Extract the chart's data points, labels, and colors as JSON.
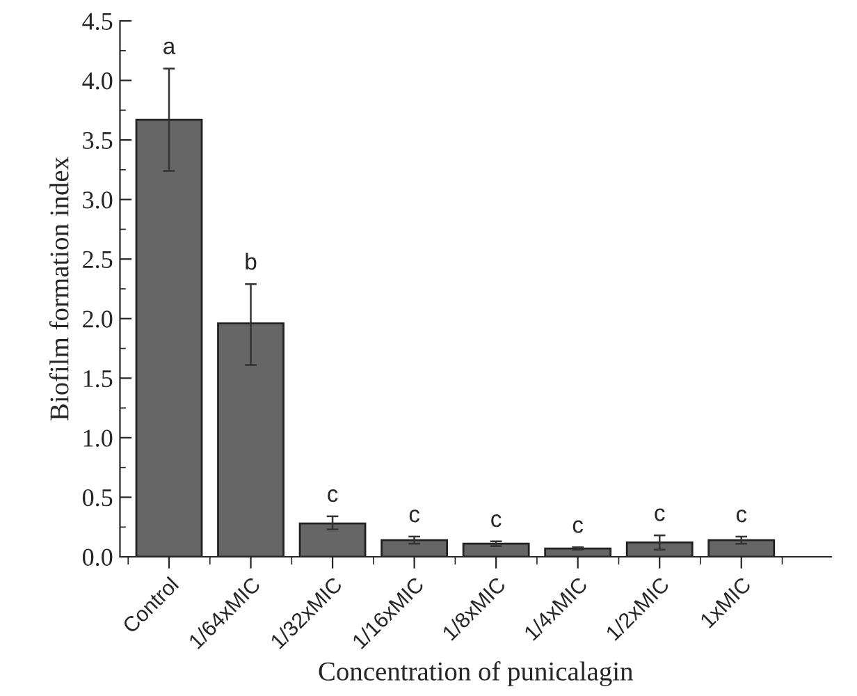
{
  "chart_data": {
    "type": "bar",
    "xlabel": "Concentration of punicalagin",
    "ylabel": "Biofilm formation index",
    "categories": [
      "Control",
      "1/64xMIC",
      "1/32xMIC",
      "1/16xMIC",
      "1/8xMIC",
      "1/4xMIC",
      "1/2xMIC",
      "1xMIC"
    ],
    "values": [
      3.67,
      1.96,
      0.28,
      0.14,
      0.11,
      0.07,
      0.12,
      0.14
    ],
    "errors": [
      [
        3.24,
        4.1
      ],
      [
        1.61,
        2.29
      ],
      [
        0.23,
        0.34
      ],
      [
        0.11,
        0.17
      ],
      [
        0.09,
        0.13
      ],
      [
        0.06,
        0.08
      ],
      [
        0.06,
        0.18
      ],
      [
        0.11,
        0.17
      ]
    ],
    "color": "#666666",
    "ylim": [
      0,
      4.5
    ],
    "yticks": [
      {
        "value": 0,
        "label": "0.0"
      },
      0.5,
      {
        "value": 1,
        "label": "1.0"
      },
      1.5,
      {
        "value": 2,
        "label": "2.0"
      },
      2.5,
      {
        "value": 3,
        "label": "3.0"
      },
      3.5,
      {
        "value": 4,
        "label": "4.0"
      },
      4.5
    ],
    "annotations": [
      {
        "text": "a",
        "x": "Control",
        "y": 4.1
      },
      {
        "text": "b",
        "x": "1/64xMIC",
        "y": 2.29
      },
      {
        "text": "c",
        "x": "1/32xMIC",
        "y": 0.34
      },
      {
        "text": "c",
        "x": "1/16xMIC",
        "y": 0.17
      },
      {
        "text": "c",
        "x": "1/8xMIC",
        "y": 0.13
      },
      {
        "text": "c",
        "x": "1/4xMIC",
        "y": 0.08
      },
      {
        "text": "c",
        "x": "1/2xMIC",
        "y": 0.18
      },
      {
        "text": "c",
        "x": "1xMIC",
        "y": 0.17
      }
    ],
    "grid": false
  }
}
